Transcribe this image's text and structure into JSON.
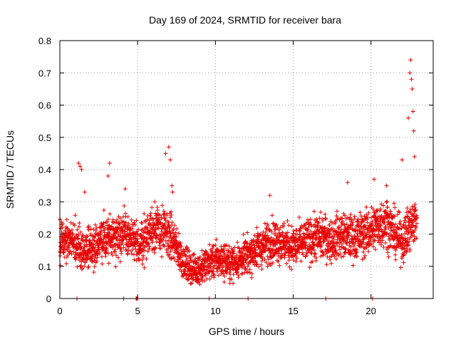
{
  "chart_data": {
    "type": "scatter",
    "title": "Day 169 of 2024, SRMTID for receiver bara",
    "xlabel": "GPS time / hours",
    "ylabel": "SRMTID / TECUs",
    "xlim": [
      0,
      24
    ],
    "ylim": [
      0,
      0.8
    ],
    "x_ticks": [
      0,
      5,
      10,
      15,
      20
    ],
    "x_tick_labels": [
      "0",
      "5",
      "10",
      "15",
      "20"
    ],
    "y_ticks": [
      0,
      0.1,
      0.2,
      0.3,
      0.4,
      0.5,
      0.6,
      0.7,
      0.8
    ],
    "y_tick_labels": [
      "0",
      "0.1",
      "0.2",
      "0.3",
      "0.4",
      "0.5",
      "0.6",
      "0.7",
      "0.8"
    ],
    "grid": true,
    "marker": "+",
    "color": "#e80000",
    "series": [
      {
        "name": "SRMTID",
        "trend_hours": [
          0,
          0.5,
          1,
          1.5,
          2,
          2.5,
          3,
          3.5,
          4,
          4.5,
          5,
          5.5,
          6,
          6.5,
          7,
          7.5,
          8,
          8.5,
          9,
          9.5,
          10,
          10.5,
          11,
          11.5,
          12,
          12.5,
          13,
          13.5,
          14,
          14.5,
          15,
          15.5,
          16,
          16.5,
          17,
          17.5,
          18,
          18.5,
          19,
          19.5,
          20,
          20.5,
          21,
          21.5,
          22,
          22.5,
          23
        ],
        "trend_values": [
          0.19,
          0.18,
          0.17,
          0.15,
          0.16,
          0.17,
          0.19,
          0.2,
          0.2,
          0.19,
          0.16,
          0.19,
          0.22,
          0.21,
          0.2,
          0.16,
          0.11,
          0.09,
          0.09,
          0.11,
          0.12,
          0.12,
          0.11,
          0.12,
          0.13,
          0.15,
          0.16,
          0.18,
          0.18,
          0.17,
          0.16,
          0.17,
          0.18,
          0.19,
          0.19,
          0.18,
          0.2,
          0.19,
          0.19,
          0.2,
          0.21,
          0.23,
          0.24,
          0.2,
          0.18,
          0.22,
          0.25
        ],
        "spikes": [
          {
            "x": 1.2,
            "y": 0.42
          },
          {
            "x": 1.3,
            "y": 0.41
          },
          {
            "x": 1.4,
            "y": 0.4
          },
          {
            "x": 1.6,
            "y": 0.33
          },
          {
            "x": 3.1,
            "y": 0.38
          },
          {
            "x": 3.2,
            "y": 0.42
          },
          {
            "x": 4.2,
            "y": 0.34
          },
          {
            "x": 6.1,
            "y": 0.3
          },
          {
            "x": 6.8,
            "y": 0.45
          },
          {
            "x": 7.0,
            "y": 0.47
          },
          {
            "x": 7.1,
            "y": 0.43
          },
          {
            "x": 7.2,
            "y": 0.35
          },
          {
            "x": 7.25,
            "y": 0.33
          },
          {
            "x": 13.5,
            "y": 0.32
          },
          {
            "x": 18.5,
            "y": 0.36
          },
          {
            "x": 20.2,
            "y": 0.37
          },
          {
            "x": 21.0,
            "y": 0.35
          },
          {
            "x": 22.0,
            "y": 0.43
          },
          {
            "x": 22.4,
            "y": 0.56
          },
          {
            "x": 22.5,
            "y": 0.7
          },
          {
            "x": 22.55,
            "y": 0.74
          },
          {
            "x": 22.6,
            "y": 0.68
          },
          {
            "x": 22.65,
            "y": 0.65
          },
          {
            "x": 22.7,
            "y": 0.58
          },
          {
            "x": 22.75,
            "y": 0.52
          },
          {
            "x": 22.8,
            "y": 0.44
          }
        ],
        "zero_points": [
          1.1,
          4.1,
          4.9,
          4.95,
          5.0,
          9.6,
          12.1,
          17.1,
          20.1
        ]
      }
    ]
  }
}
